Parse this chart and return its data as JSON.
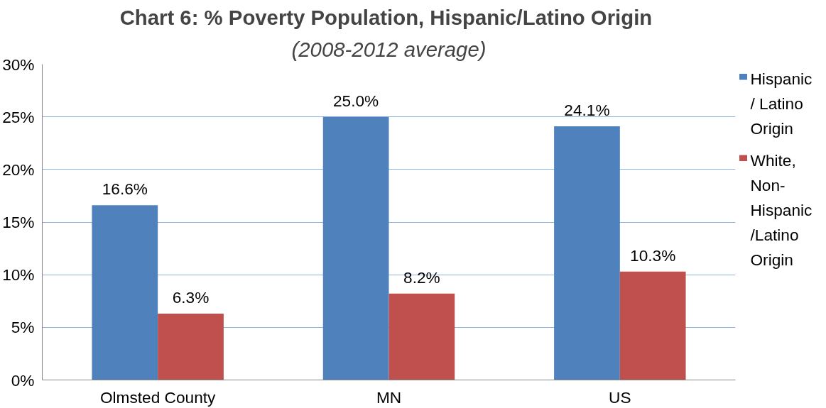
{
  "chart_data": {
    "type": "bar",
    "title": "Chart 6:  % Poverty Population, Hispanic/Latino Origin",
    "subtitle": "(2008-2012 average)",
    "categories": [
      "Olmsted County",
      "MN",
      "US"
    ],
    "series": [
      {
        "name": "Hispanic / Latino Origin",
        "color": "#4f81bd",
        "values": [
          16.6,
          25.0,
          24.1
        ],
        "value_labels": [
          "16.6%",
          "25.0%",
          "24.1%"
        ]
      },
      {
        "name": "White, Non-Hispanic /Latino Origin",
        "color": "#c0504d",
        "values": [
          6.3,
          8.2,
          10.3
        ],
        "value_labels": [
          "6.3%",
          "8.2%",
          "10.3%"
        ]
      }
    ],
    "ylim": [
      0,
      30
    ],
    "yticks": [
      {
        "value": 0,
        "label": "0%"
      },
      {
        "value": 5,
        "label": "5%"
      },
      {
        "value": 10,
        "label": "10%"
      },
      {
        "value": 15,
        "label": "15%"
      },
      {
        "value": 20,
        "label": "20%"
      },
      {
        "value": 25,
        "label": "25%"
      },
      {
        "value": 30,
        "label": "30%"
      }
    ],
    "grid": "y",
    "legend": "right"
  }
}
